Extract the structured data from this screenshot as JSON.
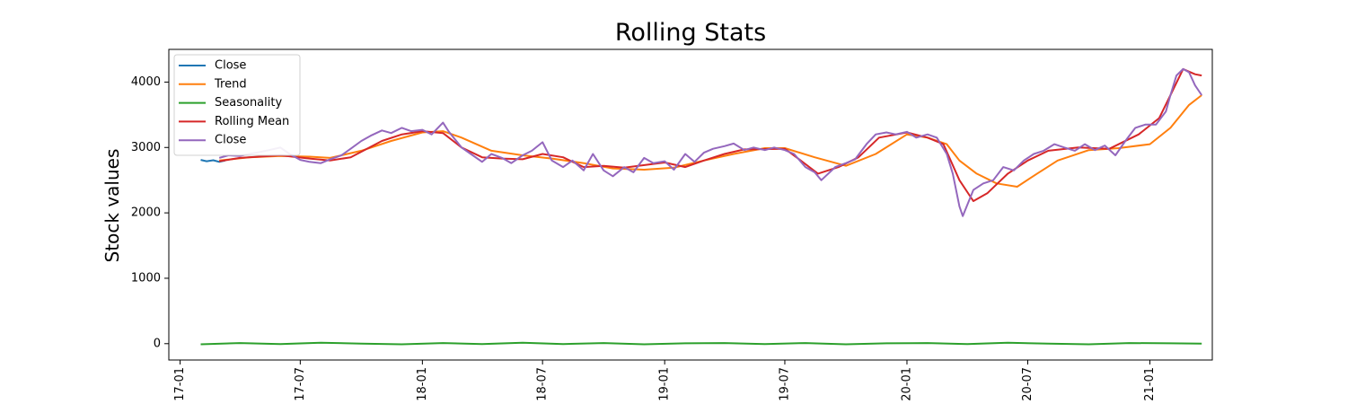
{
  "chart_data": {
    "type": "line",
    "title": "Rolling Stats",
    "ylabel": "Stock values",
    "xlabel": "",
    "xlim": [
      "2016-12-15",
      "2021-04-05"
    ],
    "ylim": [
      -250,
      4500
    ],
    "x_ticks": [
      "2017-01-01",
      "2017-07-01",
      "2018-01-01",
      "2018-07-01",
      "2019-01-01",
      "2019-07-01",
      "2020-01-01",
      "2020-07-01",
      "2021-01-01"
    ],
    "x_tick_labels": [
      "17-01",
      "17-07",
      "18-01",
      "18-07",
      "19-01",
      "19-07",
      "20-01",
      "20-07",
      "21-01"
    ],
    "y_ticks": [
      0,
      1000,
      2000,
      3000,
      4000
    ],
    "y_tick_labels": [
      "0",
      "1000",
      "2000",
      "3000",
      "4000"
    ],
    "grid": false,
    "legend_position": "top-left",
    "series": [
      {
        "name": "Close",
        "color": "#1f77b4",
        "points": [
          [
            "2017-02-01",
            2810
          ],
          [
            "2017-02-10",
            2790
          ],
          [
            "2017-02-20",
            2805
          ],
          [
            "2017-03-01",
            2780
          ],
          [
            "2017-03-10",
            2800
          ]
        ]
      },
      {
        "name": "Trend",
        "color": "#ff7f0e",
        "points": [
          [
            "2017-03-01",
            2800
          ],
          [
            "2017-04-15",
            2850
          ],
          [
            "2017-06-01",
            2870
          ],
          [
            "2017-07-15",
            2860
          ],
          [
            "2017-08-15",
            2840
          ],
          [
            "2017-10-01",
            2950
          ],
          [
            "2017-11-15",
            3100
          ],
          [
            "2018-01-01",
            3230
          ],
          [
            "2018-02-01",
            3250
          ],
          [
            "2018-03-01",
            3150
          ],
          [
            "2018-04-15",
            2950
          ],
          [
            "2018-06-01",
            2880
          ],
          [
            "2018-07-15",
            2830
          ],
          [
            "2018-09-01",
            2760
          ],
          [
            "2018-10-15",
            2680
          ],
          [
            "2018-12-01",
            2660
          ],
          [
            "2019-01-15",
            2690
          ],
          [
            "2019-03-01",
            2800
          ],
          [
            "2019-04-15",
            2900
          ],
          [
            "2019-06-01",
            2990
          ],
          [
            "2019-07-01",
            2990
          ],
          [
            "2019-08-15",
            2850
          ],
          [
            "2019-10-01",
            2720
          ],
          [
            "2019-11-15",
            2900
          ],
          [
            "2020-01-01",
            3200
          ],
          [
            "2020-02-01",
            3150
          ],
          [
            "2020-03-01",
            3050
          ],
          [
            "2020-03-20",
            2800
          ],
          [
            "2020-04-15",
            2600
          ],
          [
            "2020-05-15",
            2450
          ],
          [
            "2020-06-15",
            2400
          ],
          [
            "2020-07-15",
            2600
          ],
          [
            "2020-08-15",
            2800
          ],
          [
            "2020-10-01",
            2960
          ],
          [
            "2020-11-15",
            2990
          ],
          [
            "2021-01-01",
            3050
          ],
          [
            "2021-02-01",
            3300
          ],
          [
            "2021-03-01",
            3650
          ],
          [
            "2021-03-20",
            3800
          ]
        ]
      },
      {
        "name": "Seasonality",
        "color": "#2ca02c",
        "points": [
          [
            "2017-02-01",
            -10
          ],
          [
            "2017-04-01",
            10
          ],
          [
            "2017-06-01",
            -5
          ],
          [
            "2017-08-01",
            15
          ],
          [
            "2017-10-01",
            0
          ],
          [
            "2017-12-01",
            -10
          ],
          [
            "2018-02-01",
            10
          ],
          [
            "2018-04-01",
            -5
          ],
          [
            "2018-06-01",
            15
          ],
          [
            "2018-08-01",
            -5
          ],
          [
            "2018-10-01",
            10
          ],
          [
            "2018-12-01",
            -10
          ],
          [
            "2019-02-01",
            5
          ],
          [
            "2019-04-01",
            10
          ],
          [
            "2019-06-01",
            -5
          ],
          [
            "2019-08-01",
            10
          ],
          [
            "2019-10-01",
            -10
          ],
          [
            "2019-12-01",
            5
          ],
          [
            "2020-02-01",
            10
          ],
          [
            "2020-04-01",
            -5
          ],
          [
            "2020-06-01",
            15
          ],
          [
            "2020-08-01",
            0
          ],
          [
            "2020-10-01",
            -10
          ],
          [
            "2020-12-01",
            10
          ],
          [
            "2021-02-01",
            5
          ],
          [
            "2021-03-20",
            0
          ]
        ]
      },
      {
        "name": "Rolling Mean",
        "color": "#d62728",
        "points": [
          [
            "2017-03-01",
            2790
          ],
          [
            "2017-04-01",
            2840
          ],
          [
            "2017-06-01",
            2880
          ],
          [
            "2017-07-15",
            2830
          ],
          [
            "2017-08-15",
            2800
          ],
          [
            "2017-09-15",
            2850
          ],
          [
            "2017-11-01",
            3100
          ],
          [
            "2017-12-01",
            3200
          ],
          [
            "2018-01-01",
            3250
          ],
          [
            "2018-02-01",
            3220
          ],
          [
            "2018-03-01",
            3000
          ],
          [
            "2018-04-01",
            2850
          ],
          [
            "2018-05-01",
            2830
          ],
          [
            "2018-06-01",
            2820
          ],
          [
            "2018-07-01",
            2900
          ],
          [
            "2018-08-01",
            2850
          ],
          [
            "2018-09-01",
            2700
          ],
          [
            "2018-10-01",
            2720
          ],
          [
            "2018-11-01",
            2690
          ],
          [
            "2019-01-01",
            2770
          ],
          [
            "2019-02-01",
            2700
          ],
          [
            "2019-03-01",
            2800
          ],
          [
            "2019-04-01",
            2900
          ],
          [
            "2019-05-01",
            2970
          ],
          [
            "2019-07-01",
            2980
          ],
          [
            "2019-07-25",
            2800
          ],
          [
            "2019-08-20",
            2600
          ],
          [
            "2019-09-20",
            2700
          ],
          [
            "2019-10-20",
            2850
          ],
          [
            "2019-11-20",
            3150
          ],
          [
            "2020-01-01",
            3230
          ],
          [
            "2020-02-01",
            3150
          ],
          [
            "2020-02-25",
            3050
          ],
          [
            "2020-03-20",
            2500
          ],
          [
            "2020-04-10",
            2180
          ],
          [
            "2020-05-01",
            2300
          ],
          [
            "2020-06-01",
            2600
          ],
          [
            "2020-07-01",
            2800
          ],
          [
            "2020-08-01",
            2950
          ],
          [
            "2020-09-15",
            3000
          ],
          [
            "2020-11-01",
            2980
          ],
          [
            "2020-12-15",
            3200
          ],
          [
            "2021-01-15",
            3450
          ],
          [
            "2021-02-01",
            3800
          ],
          [
            "2021-02-20",
            4200
          ],
          [
            "2021-03-10",
            4120
          ],
          [
            "2021-03-20",
            4100
          ]
        ]
      },
      {
        "name": "Close",
        "color": "#9467bd",
        "points": [
          [
            "2017-03-01",
            2840
          ],
          [
            "2017-03-15",
            2880
          ],
          [
            "2017-04-01",
            2870
          ],
          [
            "2017-04-15",
            2900
          ],
          [
            "2017-05-01",
            2930
          ],
          [
            "2017-05-15",
            2960
          ],
          [
            "2017-06-01",
            3000
          ],
          [
            "2017-06-15",
            2900
          ],
          [
            "2017-07-01",
            2810
          ],
          [
            "2017-07-15",
            2780
          ],
          [
            "2017-08-01",
            2760
          ],
          [
            "2017-08-15",
            2820
          ],
          [
            "2017-09-01",
            2880
          ],
          [
            "2017-09-15",
            2980
          ],
          [
            "2017-10-01",
            3100
          ],
          [
            "2017-10-15",
            3180
          ],
          [
            "2017-11-01",
            3260
          ],
          [
            "2017-11-15",
            3220
          ],
          [
            "2017-12-01",
            3300
          ],
          [
            "2017-12-15",
            3250
          ],
          [
            "2018-01-01",
            3270
          ],
          [
            "2018-01-15",
            3200
          ],
          [
            "2018-02-01",
            3380
          ],
          [
            "2018-02-10",
            3240
          ],
          [
            "2018-03-01",
            3000
          ],
          [
            "2018-03-15",
            2900
          ],
          [
            "2018-04-01",
            2780
          ],
          [
            "2018-04-15",
            2900
          ],
          [
            "2018-05-01",
            2840
          ],
          [
            "2018-05-15",
            2760
          ],
          [
            "2018-06-01",
            2880
          ],
          [
            "2018-06-15",
            2950
          ],
          [
            "2018-07-01",
            3080
          ],
          [
            "2018-07-15",
            2800
          ],
          [
            "2018-08-01",
            2700
          ],
          [
            "2018-08-15",
            2800
          ],
          [
            "2018-09-01",
            2650
          ],
          [
            "2018-09-15",
            2900
          ],
          [
            "2018-10-01",
            2650
          ],
          [
            "2018-10-15",
            2560
          ],
          [
            "2018-11-01",
            2700
          ],
          [
            "2018-11-15",
            2620
          ],
          [
            "2018-12-01",
            2840
          ],
          [
            "2018-12-15",
            2760
          ],
          [
            "2019-01-01",
            2790
          ],
          [
            "2019-01-15",
            2660
          ],
          [
            "2019-02-01",
            2900
          ],
          [
            "2019-02-15",
            2780
          ],
          [
            "2019-03-01",
            2920
          ],
          [
            "2019-03-15",
            2980
          ],
          [
            "2019-04-01",
            3020
          ],
          [
            "2019-04-15",
            3060
          ],
          [
            "2019-05-01",
            2960
          ],
          [
            "2019-05-15",
            3000
          ],
          [
            "2019-06-01",
            2960
          ],
          [
            "2019-06-15",
            3000
          ],
          [
            "2019-07-01",
            2960
          ],
          [
            "2019-07-15",
            2900
          ],
          [
            "2019-08-01",
            2700
          ],
          [
            "2019-08-15",
            2620
          ],
          [
            "2019-08-25",
            2500
          ],
          [
            "2019-09-15",
            2700
          ],
          [
            "2019-10-01",
            2760
          ],
          [
            "2019-10-15",
            2820
          ],
          [
            "2019-11-01",
            3050
          ],
          [
            "2019-11-15",
            3200
          ],
          [
            "2019-12-01",
            3230
          ],
          [
            "2019-12-15",
            3200
          ],
          [
            "2020-01-01",
            3240
          ],
          [
            "2020-01-15",
            3150
          ],
          [
            "2020-02-01",
            3200
          ],
          [
            "2020-02-15",
            3150
          ],
          [
            "2020-03-01",
            2900
          ],
          [
            "2020-03-10",
            2600
          ],
          [
            "2020-03-20",
            2100
          ],
          [
            "2020-03-25",
            1950
          ],
          [
            "2020-04-10",
            2350
          ],
          [
            "2020-04-25",
            2450
          ],
          [
            "2020-05-10",
            2500
          ],
          [
            "2020-05-25",
            2700
          ],
          [
            "2020-06-10",
            2650
          ],
          [
            "2020-06-25",
            2800
          ],
          [
            "2020-07-10",
            2900
          ],
          [
            "2020-07-25",
            2950
          ],
          [
            "2020-08-10",
            3050
          ],
          [
            "2020-08-25",
            3000
          ],
          [
            "2020-09-10",
            2950
          ],
          [
            "2020-09-25",
            3050
          ],
          [
            "2020-10-10",
            2960
          ],
          [
            "2020-10-25",
            3030
          ],
          [
            "2020-11-10",
            2880
          ],
          [
            "2020-11-25",
            3100
          ],
          [
            "2020-12-10",
            3300
          ],
          [
            "2020-12-25",
            3350
          ],
          [
            "2021-01-10",
            3350
          ],
          [
            "2021-01-25",
            3550
          ],
          [
            "2021-02-01",
            3800
          ],
          [
            "2021-02-10",
            4100
          ],
          [
            "2021-02-20",
            4200
          ],
          [
            "2021-03-01",
            4150
          ],
          [
            "2021-03-10",
            3950
          ],
          [
            "2021-03-20",
            3800
          ]
        ]
      }
    ]
  }
}
